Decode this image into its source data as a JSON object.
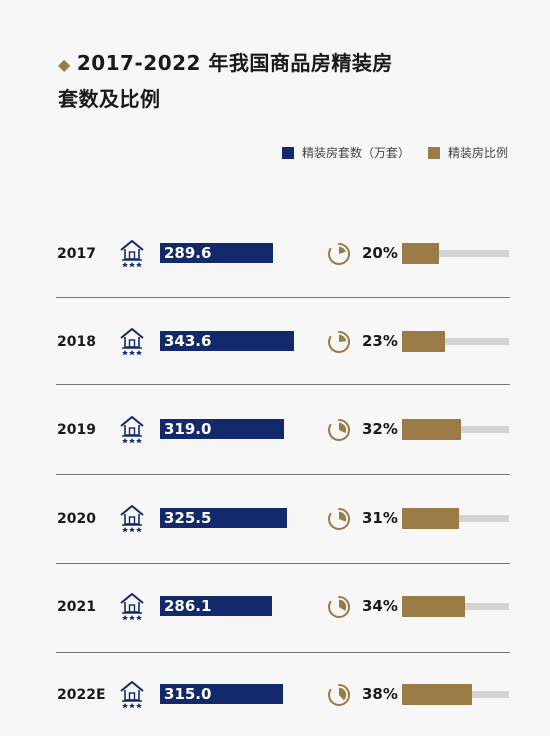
{
  "title": {
    "line1": "2017-2022 年我国商品房精装房",
    "line2": "套数及比例",
    "bullet": "◆"
  },
  "legend": [
    {
      "label": "精装房套数（万套）",
      "color": "#13296b"
    },
    {
      "label": "精装房比例",
      "color": "#9b7b45"
    }
  ],
  "colors": {
    "count": "#13296b",
    "ratio": "#9b7b45",
    "track": "#d3d3d3",
    "icon": "#13296b"
  },
  "icons": {
    "row_icon": "house-icon",
    "ratio_icon": "pie-icon"
  },
  "chart_data": {
    "type": "bar",
    "categories": [
      "2017",
      "2018",
      "2019",
      "2020",
      "2021",
      "2022E"
    ],
    "series": [
      {
        "name": "精装房套数（万套）",
        "values": [
          289.6,
          343.6,
          319.0,
          325.5,
          286.1,
          315.0
        ],
        "labels": [
          "289.6",
          "343.6",
          "319.0",
          "325.5",
          "286.1",
          "315.0"
        ]
      },
      {
        "name": "精装房比例",
        "values": [
          20,
          23,
          32,
          31,
          34,
          38
        ],
        "labels": [
          "20%",
          "23%",
          "32%",
          "31%",
          "34%",
          "38%"
        ]
      }
    ],
    "legend": "top-right"
  }
}
